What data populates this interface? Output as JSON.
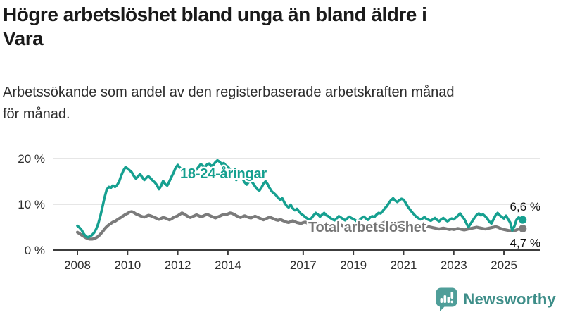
{
  "header": {
    "title_line1": "Högre arbetslöshet bland unga än bland äldre i",
    "title_line2": "Vara",
    "subtitle_line1": "Arbetssökande som andel av den registerbaserade arbetskraften månad",
    "subtitle_line2": "för månad."
  },
  "footer": {
    "brand": "Newsworthy"
  },
  "colors": {
    "youth": "#16a090",
    "total": "#7b7b7b",
    "total_label": "#757575",
    "grid": "#dddddd",
    "axis": "#3c3c3c",
    "logo_icon": "#4f9e99",
    "logo_text": "#3e8e89"
  },
  "chart_data": {
    "type": "line",
    "title": "Högre arbetslöshet bland unga än bland äldre i Vara",
    "subtitle": "Arbetssökande som andel av den registerbaserade arbetskraften månad för månad.",
    "unit": "%",
    "grid": "horizontal",
    "legend_position": "inline-labels",
    "x_start": 2008.0,
    "x_step_years": 0.0833,
    "x_end": 2025.75,
    "ylim": [
      0,
      21
    ],
    "x_ticks": [
      2008,
      2010,
      2012,
      2014,
      2017,
      2019,
      2021,
      2023,
      2025
    ],
    "y_ticks": [
      {
        "value": 0,
        "label": "0 %"
      },
      {
        "value": 10,
        "label": "10 %"
      },
      {
        "value": 20,
        "label": "20 %"
      }
    ],
    "series": [
      {
        "name": "18-24-åringar",
        "color": "#16a090",
        "end_label": "6,6 %",
        "end_value": 6.6,
        "values": [
          5.3,
          4.9,
          4.4,
          3.6,
          3.0,
          2.8,
          3.0,
          3.3,
          3.8,
          4.6,
          5.8,
          7.5,
          9.5,
          11.5,
          13.2,
          13.8,
          13.6,
          14.1,
          13.8,
          14.2,
          15.0,
          16.3,
          17.4,
          18.1,
          17.8,
          17.4,
          17.0,
          16.2,
          15.6,
          16.1,
          16.6,
          15.9,
          15.3,
          15.8,
          16.1,
          15.7,
          15.2,
          14.8,
          14.2,
          13.3,
          14.0,
          15.1,
          14.4,
          14.1,
          15.0,
          16.0,
          16.9,
          18.0,
          18.6,
          18.0,
          17.4,
          16.4,
          17.0,
          15.9,
          15.8,
          16.5,
          17.2,
          17.6,
          18.2,
          18.8,
          18.4,
          18.1,
          18.7,
          18.9,
          18.4,
          18.6,
          19.2,
          19.6,
          19.3,
          18.8,
          19.0,
          18.5,
          18.2,
          17.6,
          16.8,
          15.9,
          15.3,
          16.0,
          16.4,
          15.6,
          14.8,
          14.3,
          14.9,
          15.1,
          14.6,
          13.9,
          13.3,
          13.0,
          13.6,
          14.5,
          15.0,
          14.4,
          13.5,
          12.8,
          12.4,
          12.0,
          11.4,
          11.0,
          11.3,
          10.4,
          9.7,
          9.3,
          9.9,
          9.1,
          8.7,
          9.0,
          8.4,
          7.9,
          7.6,
          7.2,
          6.9,
          6.7,
          7.0,
          7.6,
          8.1,
          7.8,
          7.3,
          7.7,
          8.1,
          7.6,
          7.4,
          7.0,
          6.7,
          6.5,
          6.9,
          7.4,
          7.1,
          6.8,
          6.5,
          6.9,
          7.3,
          7.0,
          6.8,
          6.5,
          6.2,
          6.6,
          7.0,
          7.3,
          6.9,
          6.6,
          7.1,
          7.4,
          7.2,
          7.7,
          8.1,
          8.0,
          8.5,
          9.1,
          9.6,
          10.3,
          10.9,
          11.3,
          10.8,
          10.5,
          10.9,
          11.2,
          11.0,
          10.3,
          9.5,
          8.9,
          8.3,
          7.8,
          7.3,
          7.0,
          6.7,
          6.9,
          7.2,
          6.8,
          6.6,
          6.4,
          6.7,
          7.0,
          6.6,
          6.3,
          6.7,
          7.0,
          6.6,
          6.3,
          6.6,
          6.9,
          6.7,
          7.1,
          7.5,
          8.0,
          7.4,
          6.8,
          5.9,
          5.0,
          5.7,
          6.4,
          7.1,
          7.7,
          8.0,
          7.6,
          7.8,
          7.4,
          6.9,
          6.2,
          5.8,
          6.7,
          7.6,
          8.1,
          7.6,
          7.2,
          6.9,
          7.5,
          6.7,
          6.0,
          4.3,
          5.2,
          6.6,
          7.1,
          6.9,
          6.6
        ]
      },
      {
        "name": "Total arbetslöshet",
        "color": "#7b7b7b",
        "end_label": "4,7 %",
        "end_value": 4.7,
        "values": [
          3.9,
          3.6,
          3.3,
          3.0,
          2.7,
          2.5,
          2.4,
          2.4,
          2.5,
          2.7,
          3.0,
          3.5,
          4.0,
          4.6,
          5.1,
          5.5,
          5.8,
          6.1,
          6.3,
          6.6,
          6.9,
          7.2,
          7.5,
          7.8,
          8.0,
          8.3,
          8.4,
          8.2,
          7.9,
          7.7,
          7.5,
          7.3,
          7.2,
          7.4,
          7.6,
          7.5,
          7.3,
          7.1,
          6.9,
          6.7,
          6.9,
          7.1,
          7.0,
          6.8,
          6.6,
          6.8,
          7.1,
          7.3,
          7.5,
          7.8,
          8.1,
          7.9,
          7.6,
          7.3,
          7.1,
          7.3,
          7.5,
          7.7,
          7.5,
          7.3,
          7.4,
          7.6,
          7.8,
          7.6,
          7.4,
          7.2,
          7.0,
          7.2,
          7.4,
          7.6,
          7.8,
          7.7,
          7.9,
          8.1,
          8.0,
          7.8,
          7.5,
          7.3,
          7.1,
          7.3,
          7.5,
          7.3,
          7.1,
          7.0,
          7.2,
          7.4,
          7.2,
          7.0,
          6.8,
          6.6,
          6.8,
          7.0,
          7.2,
          7.0,
          6.8,
          6.6,
          6.5,
          6.7,
          6.5,
          6.3,
          6.1,
          6.0,
          6.2,
          6.4,
          6.2,
          6.0,
          5.9,
          5.8,
          6.0,
          6.1,
          5.9,
          5.7,
          5.6,
          5.8,
          6.0,
          5.8,
          5.6,
          5.5,
          5.7,
          5.6,
          5.5,
          5.6,
          5.4,
          5.3,
          5.4,
          5.6,
          5.5,
          5.3,
          5.2,
          5.3,
          5.5,
          5.4,
          5.3,
          5.2,
          5.1,
          5.2,
          5.4,
          5.5,
          5.4,
          5.3,
          5.4,
          5.5,
          5.6,
          5.7,
          5.6,
          5.7,
          5.9,
          6.1,
          6.2,
          6.3,
          6.2,
          6.1,
          6.0,
          5.9,
          5.9,
          6.0,
          6.0,
          5.9,
          5.8,
          5.7,
          5.6,
          5.4,
          5.3,
          5.2,
          5.1,
          5.0,
          5.1,
          5.2,
          5.1,
          5.0,
          4.9,
          4.8,
          4.7,
          4.6,
          4.7,
          4.8,
          4.7,
          4.6,
          4.5,
          4.6,
          4.5,
          4.6,
          4.7,
          4.6,
          4.5,
          4.4,
          4.5,
          4.6,
          4.7,
          4.8,
          4.9,
          5.0,
          4.9,
          4.8,
          4.7,
          4.6,
          4.7,
          4.8,
          4.9,
          5.0,
          5.1,
          5.0,
          4.8,
          4.6,
          4.5,
          4.4,
          4.3,
          4.2,
          4.3,
          4.2,
          4.4,
          4.6,
          4.6,
          4.7
        ]
      }
    ]
  }
}
